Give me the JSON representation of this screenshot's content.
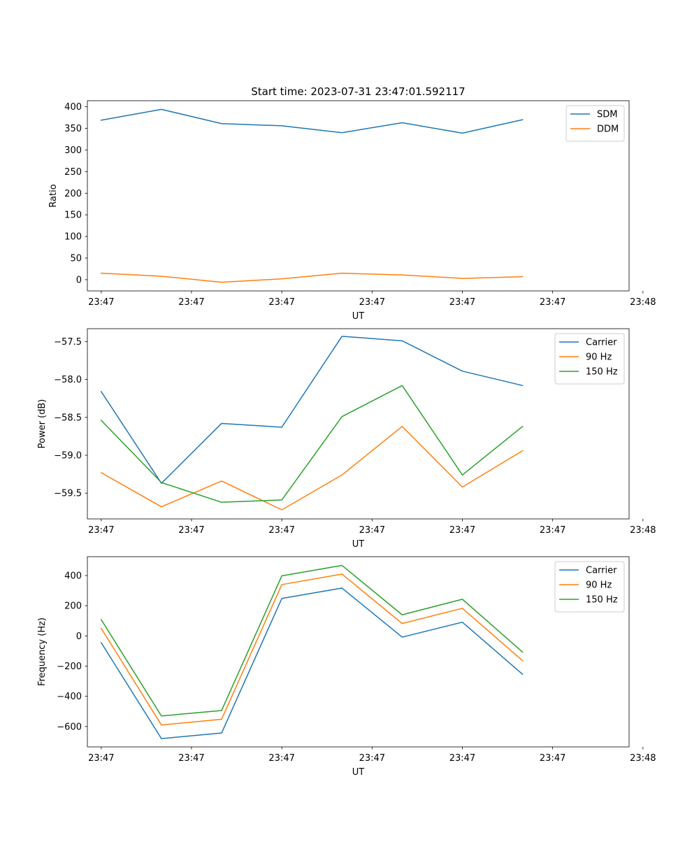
{
  "title": "Start time: 2023-07-31 23:47:01.592117",
  "colors": {
    "c0": "#1f77b4",
    "c1": "#ff7f0e",
    "c2": "#2ca02c"
  },
  "chart_data": [
    {
      "type": "line",
      "xlabel": "UT",
      "ylabel": "Ratio",
      "x_ticks": [
        "23:47",
        "23:47",
        "23:47",
        "23:47",
        "23:47",
        "23:47",
        "23:48"
      ],
      "y_ticks": [
        "0",
        "50",
        "100",
        "150",
        "200",
        "250",
        "300",
        "350",
        "400"
      ],
      "y_tick_values": [
        0,
        50,
        100,
        150,
        200,
        250,
        300,
        350,
        400
      ],
      "ylim": [
        -26,
        414
      ],
      "x_points": [
        1,
        2,
        3,
        4,
        5,
        6,
        7,
        8
      ],
      "legend": "top-right",
      "series": [
        {
          "name": "SDM",
          "color": "#1f77b4",
          "values": [
            369,
            394,
            361,
            356,
            340,
            363,
            339,
            370
          ]
        },
        {
          "name": "DDM",
          "color": "#ff7f0e",
          "values": [
            15,
            8,
            -6,
            2,
            15,
            11,
            3,
            7
          ]
        }
      ]
    },
    {
      "type": "line",
      "xlabel": "UT",
      "ylabel": "Power (dB)",
      "x_ticks": [
        "23:47",
        "23:47",
        "23:47",
        "23:47",
        "23:47",
        "23:47",
        "23:48"
      ],
      "y_ticks": [
        "−57.5",
        "−58.0",
        "−58.5",
        "−59.0",
        "−59.5"
      ],
      "y_tick_values": [
        -57.5,
        -58.0,
        -58.5,
        -59.0,
        -59.5
      ],
      "ylim": [
        -59.84,
        -57.33
      ],
      "x_points": [
        1,
        2,
        3,
        4,
        5,
        6,
        7,
        8
      ],
      "legend": "top-right",
      "series": [
        {
          "name": "Carrier",
          "color": "#1f77b4",
          "values": [
            -58.16,
            -59.37,
            -58.58,
            -58.63,
            -57.43,
            -57.49,
            -57.89,
            -58.08
          ]
        },
        {
          "name": "90 Hz",
          "color": "#ff7f0e",
          "values": [
            -59.23,
            -59.68,
            -59.34,
            -59.72,
            -59.26,
            -58.62,
            -59.42,
            -58.94
          ]
        },
        {
          "name": "150 Hz",
          "color": "#2ca02c",
          "values": [
            -58.54,
            -59.36,
            -59.62,
            -59.59,
            -58.49,
            -58.08,
            -59.26,
            -58.62
          ]
        }
      ]
    },
    {
      "type": "line",
      "xlabel": "UT",
      "ylabel": "Frequency (Hz)",
      "x_ticks": [
        "23:47",
        "23:47",
        "23:47",
        "23:47",
        "23:47",
        "23:47",
        "23:48"
      ],
      "y_ticks": [
        "−600",
        "−400",
        "−200",
        "0",
        "200",
        "400"
      ],
      "y_tick_values": [
        -600,
        -400,
        -200,
        0,
        200,
        400
      ],
      "ylim": [
        -735,
        525
      ],
      "x_points": [
        1,
        2,
        3,
        4,
        5,
        6,
        7,
        8
      ],
      "legend": "top-right",
      "series": [
        {
          "name": "Carrier",
          "color": "#1f77b4",
          "values": [
            -45,
            -680,
            -643,
            248,
            317,
            -8,
            91,
            -254
          ]
        },
        {
          "name": "90 Hz",
          "color": "#ff7f0e",
          "values": [
            50,
            -590,
            -552,
            340,
            410,
            82,
            183,
            -164
          ]
        },
        {
          "name": "150 Hz",
          "color": "#2ca02c",
          "values": [
            108,
            -530,
            -494,
            398,
            467,
            140,
            243,
            -107
          ]
        }
      ]
    }
  ]
}
